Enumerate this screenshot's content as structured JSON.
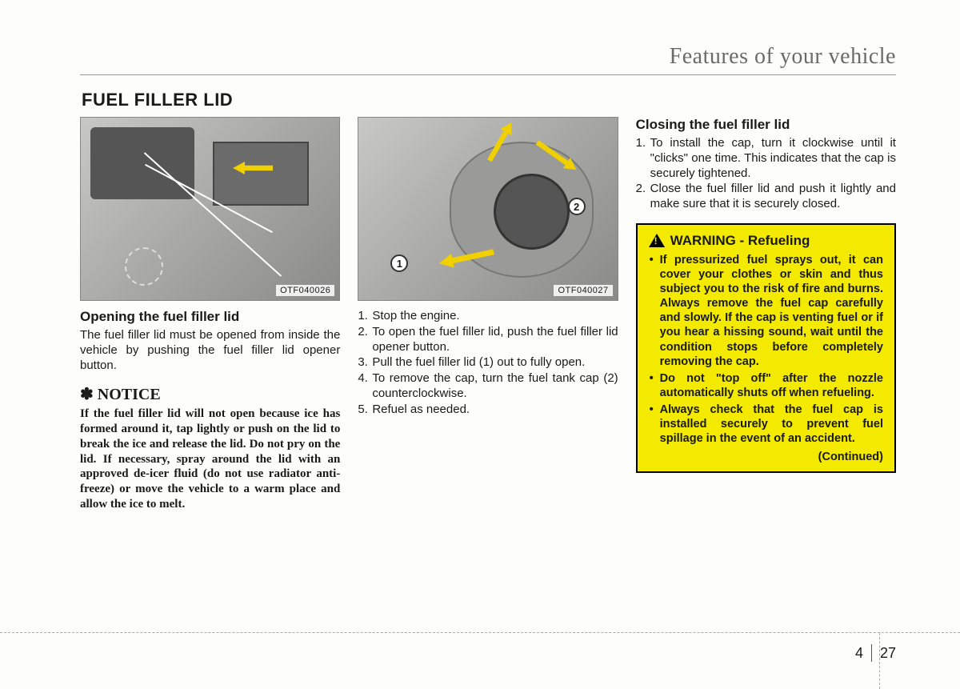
{
  "header": {
    "section": "Features of your vehicle"
  },
  "title": "FUEL FILLER LID",
  "col1": {
    "figure_tag": "OTF040026",
    "heading": "Opening the fuel filler lid",
    "body": "The fuel filler lid must be opened from inside the vehicle by pushing the fuel filler lid opener button.",
    "notice_label": "✽ NOTICE",
    "notice_body": "If the fuel filler lid will not open because ice has formed around it, tap lightly or push on the lid to break the ice and release the lid. Do not pry on the lid. If necessary, spray around the lid with an approved de-icer fluid (do not use radiator anti-freeze) or move the vehicle to a warm place and allow the ice to melt."
  },
  "col2": {
    "figure_tag": "OTF040027",
    "steps": [
      "Stop the engine.",
      "To open the fuel filler lid, push the fuel filler lid opener button.",
      "Pull the fuel filler lid (1) out to fully open.",
      "To remove the cap, turn the fuel tank cap (2) counterclockwise.",
      "Refuel as needed."
    ],
    "fig_num1": "1",
    "fig_num2": "2"
  },
  "col3": {
    "heading": "Closing the fuel filler lid",
    "steps": [
      "To install the cap, turn it clockwise until it \"clicks\" one time. This indicates that the cap is securely tightened.",
      "Close the fuel filler lid and push it lightly and make sure that it is securely closed."
    ],
    "warning": {
      "title": "WARNING - Refueling",
      "items": [
        "If pressurized fuel sprays out, it can cover your clothes or skin and thus subject you to the risk of fire and burns.  Always remove the fuel cap carefully and slowly. If the cap is venting fuel or if you hear a hissing sound, wait until the condition stops before completely removing the cap.",
        "Do not \"top off\" after the nozzle automatically shuts off when refueling.",
        "Always check that the fuel cap is installed securely to prevent fuel spillage in the event of an accident."
      ],
      "continued": "(Continued)"
    }
  },
  "footer": {
    "chapter": "4",
    "page": "27"
  }
}
